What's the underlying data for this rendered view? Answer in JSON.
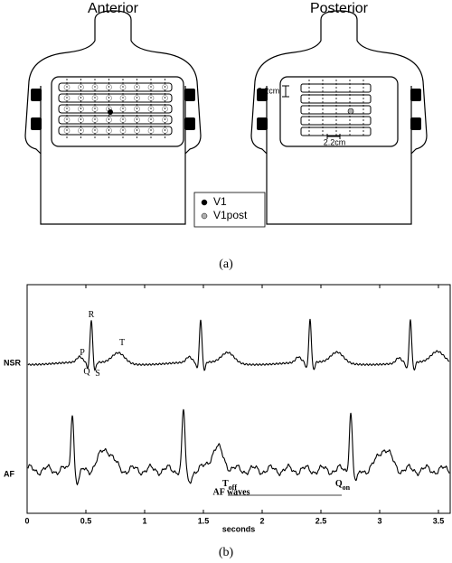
{
  "panel_a": {
    "anterior": "Anterior",
    "posterior": "Posterior",
    "dims": [
      "2.2cm",
      "2.2cm"
    ],
    "legend": [
      {
        "label": "V1",
        "color": "#000000"
      },
      {
        "label": "V1post",
        "color": "#b0b0b0"
      }
    ],
    "caption": "(a)"
  },
  "chart_data": {
    "type": "line",
    "xlabel": "seconds",
    "xlim": [
      0,
      3.6
    ],
    "xticks": [
      0,
      0.5,
      1,
      1.5,
      2,
      2.5,
      3,
      3.5
    ],
    "trace_labels": [
      "NSR",
      "AF"
    ],
    "annotations": [
      {
        "text": "R"
      },
      {
        "text": "P"
      },
      {
        "text": "Q"
      },
      {
        "text": "S"
      },
      {
        "text": "T"
      },
      {
        "text": "T",
        "sub": "off"
      },
      {
        "text": "AF waves"
      },
      {
        "text": "Q",
        "sub": "on"
      }
    ],
    "caption": "(b)"
  }
}
